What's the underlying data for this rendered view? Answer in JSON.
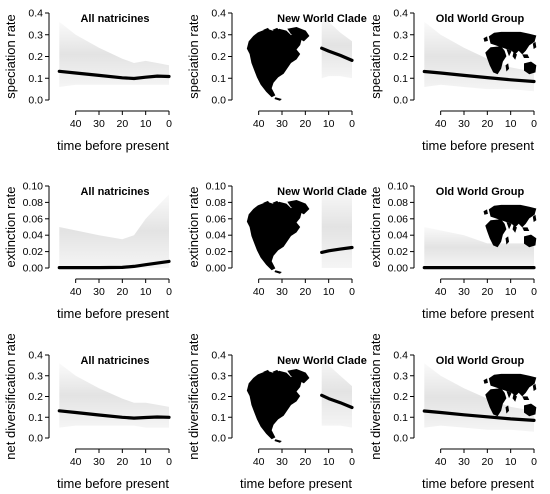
{
  "chart_data": [
    {
      "type": "line",
      "title": "All natricines",
      "ylabel": "speciation rate",
      "xlabel": "time before present",
      "xlim": [
        48,
        0
      ],
      "ylim": [
        0,
        0.4
      ],
      "xticks": [
        40,
        30,
        20,
        10,
        0
      ],
      "yticks": [
        0.0,
        0.1,
        0.2,
        0.3,
        0.4
      ],
      "ytick_labels": [
        "0.0",
        "0.1",
        "0.2",
        "0.3",
        "0.4"
      ],
      "map": "",
      "x": [
        47,
        40,
        30,
        20,
        15,
        10,
        5,
        0
      ],
      "values": [
        0.132,
        0.124,
        0.113,
        0.102,
        0.099,
        0.105,
        0.11,
        0.108
      ],
      "band_upper": [
        0.36,
        0.3,
        0.24,
        0.19,
        0.17,
        0.18,
        0.17,
        0.16
      ],
      "band_lower": [
        0.06,
        0.07,
        0.07,
        0.07,
        0.07,
        0.07,
        0.07,
        0.07
      ]
    },
    {
      "type": "line",
      "title": "New World Clade",
      "ylabel": "speciation rate",
      "xlabel": "",
      "xlim": [
        48,
        0
      ],
      "ylim": [
        0,
        0.4
      ],
      "xticks": [
        40,
        30,
        20,
        10,
        0
      ],
      "yticks": [
        0.0,
        0.1,
        0.2,
        0.3,
        0.4
      ],
      "ytick_labels": [
        "0.0",
        "0.1",
        "0.2",
        "0.3",
        "0.4"
      ],
      "map": "north-america",
      "x": [
        13,
        10,
        5,
        0
      ],
      "values": [
        0.238,
        0.225,
        0.205,
        0.182
      ],
      "band_upper": [
        0.4,
        0.36,
        0.31,
        0.27
      ],
      "band_lower": [
        0.1,
        0.11,
        0.11,
        0.1
      ]
    },
    {
      "type": "line",
      "title": "Old World Group",
      "ylabel": "speciation rate",
      "xlabel": "time before present",
      "xlim": [
        48,
        0
      ],
      "ylim": [
        0,
        0.4
      ],
      "xticks": [
        40,
        30,
        20,
        10,
        0
      ],
      "yticks": [
        0.0,
        0.1,
        0.2,
        0.3,
        0.4
      ],
      "ytick_labels": [
        "0.0",
        "0.1",
        "0.2",
        "0.3",
        "0.4"
      ],
      "map": "old-world",
      "x": [
        47,
        40,
        30,
        20,
        10,
        0
      ],
      "values": [
        0.131,
        0.124,
        0.113,
        0.103,
        0.093,
        0.085
      ],
      "band_upper": [
        0.36,
        0.3,
        0.24,
        0.19,
        0.15,
        0.13
      ],
      "band_lower": [
        0.06,
        0.07,
        0.06,
        0.05,
        0.05,
        0.04
      ]
    },
    {
      "type": "line",
      "title": "All natricines",
      "ylabel": "extinction rate",
      "xlabel": "time before present",
      "xlim": [
        48,
        0
      ],
      "ylim": [
        0,
        0.1
      ],
      "xticks": [
        40,
        30,
        20,
        10,
        0
      ],
      "yticks": [
        0.0,
        0.02,
        0.04,
        0.06,
        0.08,
        0.1
      ],
      "ytick_labels": [
        "0.00",
        "0.02",
        "0.04",
        "0.06",
        "0.08",
        "0.10"
      ],
      "map": "",
      "x": [
        47,
        30,
        20,
        15,
        10,
        5,
        0
      ],
      "values": [
        0.0005,
        0.0005,
        0.0007,
        0.002,
        0.004,
        0.006,
        0.008
      ],
      "band_upper": [
        0.05,
        0.04,
        0.035,
        0.04,
        0.06,
        0.075,
        0.09
      ],
      "band_lower": [
        0.0,
        0.0,
        0.0,
        0.0,
        0.0,
        0.0,
        0.0
      ]
    },
    {
      "type": "line",
      "title": "New World Clade",
      "ylabel": "extinction rate",
      "xlabel": "",
      "xlim": [
        48,
        0
      ],
      "ylim": [
        0,
        0.1
      ],
      "xticks": [
        40,
        30,
        20,
        10,
        0
      ],
      "yticks": [
        0.0,
        0.02,
        0.04,
        0.06,
        0.08,
        0.1
      ],
      "ytick_labels": [
        "0.00",
        "0.02",
        "0.04",
        "0.06",
        "0.08",
        "0.10"
      ],
      "map": "north-america",
      "x": [
        13,
        10,
        5,
        0
      ],
      "values": [
        0.019,
        0.021,
        0.023,
        0.025
      ],
      "band_upper": [
        0.1,
        0.1,
        0.1,
        0.1
      ],
      "band_lower": [
        0.0,
        0.0,
        0.0,
        0.0
      ]
    },
    {
      "type": "line",
      "title": "Old World Group",
      "ylabel": "extinction rate",
      "xlabel": "time before present",
      "xlim": [
        48,
        0
      ],
      "ylim": [
        0,
        0.1
      ],
      "xticks": [
        40,
        30,
        20,
        10,
        0
      ],
      "yticks": [
        0.0,
        0.02,
        0.04,
        0.06,
        0.08,
        0.1
      ],
      "ytick_labels": [
        "0.00",
        "0.02",
        "0.04",
        "0.06",
        "0.08",
        "0.10"
      ],
      "map": "old-world",
      "x": [
        47,
        30,
        20,
        10,
        0
      ],
      "values": [
        0.0005,
        0.0005,
        0.0005,
        0.0005,
        0.0005
      ],
      "band_upper": [
        0.05,
        0.04,
        0.03,
        0.03,
        0.03
      ],
      "band_lower": [
        0.0,
        0.0,
        0.0,
        0.0,
        0.0
      ]
    },
    {
      "type": "line",
      "title": "All natricines",
      "ylabel": "net diversification rate",
      "xlabel": "time before present",
      "xlim": [
        48,
        0
      ],
      "ylim": [
        0,
        0.4
      ],
      "xticks": [
        40,
        30,
        20,
        10,
        0
      ],
      "yticks": [
        0.0,
        0.1,
        0.2,
        0.3,
        0.4
      ],
      "ytick_labels": [
        "0.0",
        "0.1",
        "0.2",
        "0.3",
        "0.4"
      ],
      "map": "",
      "x": [
        47,
        40,
        30,
        20,
        15,
        10,
        5,
        0
      ],
      "values": [
        0.131,
        0.123,
        0.111,
        0.1,
        0.096,
        0.099,
        0.101,
        0.1
      ],
      "band_upper": [
        0.36,
        0.3,
        0.24,
        0.19,
        0.17,
        0.17,
        0.16,
        0.15
      ],
      "band_lower": [
        0.05,
        0.06,
        0.06,
        0.06,
        0.06,
        0.05,
        0.05,
        0.05
      ]
    },
    {
      "type": "line",
      "title": "New World Clade",
      "ylabel": "net diversification rate",
      "xlabel": "time before present",
      "xlim": [
        48,
        0
      ],
      "ylim": [
        0,
        0.4
      ],
      "xticks": [
        40,
        30,
        20,
        10,
        0
      ],
      "yticks": [
        0.0,
        0.1,
        0.2,
        0.3,
        0.4
      ],
      "ytick_labels": [
        "0.0",
        "0.1",
        "0.2",
        "0.3",
        "0.4"
      ],
      "map": "north-america",
      "x": [
        13,
        10,
        5,
        0
      ],
      "values": [
        0.206,
        0.19,
        0.17,
        0.147
      ],
      "band_upper": [
        0.4,
        0.35,
        0.3,
        0.25
      ],
      "band_lower": [
        0.06,
        0.06,
        0.06,
        0.05
      ]
    },
    {
      "type": "line",
      "title": "Old World Group",
      "ylabel": "net diversification rate",
      "xlabel": "time before present",
      "xlim": [
        48,
        0
      ],
      "ylim": [
        0,
        0.4
      ],
      "xticks": [
        40,
        30,
        20,
        10,
        0
      ],
      "yticks": [
        0.0,
        0.1,
        0.2,
        0.3,
        0.4
      ],
      "ytick_labels": [
        "0.0",
        "0.1",
        "0.2",
        "0.3",
        "0.4"
      ],
      "map": "old-world",
      "x": [
        47,
        40,
        30,
        20,
        10,
        0
      ],
      "values": [
        0.13,
        0.123,
        0.112,
        0.102,
        0.092,
        0.085
      ],
      "band_upper": [
        0.36,
        0.3,
        0.24,
        0.19,
        0.15,
        0.13
      ],
      "band_lower": [
        0.05,
        0.06,
        0.05,
        0.04,
        0.04,
        0.03
      ]
    }
  ]
}
